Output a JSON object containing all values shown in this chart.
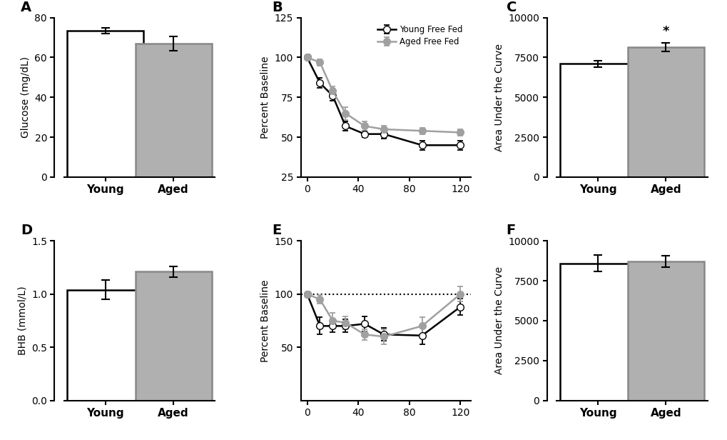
{
  "panel_A": {
    "categories": [
      "Young",
      "Aged"
    ],
    "values": [
      73.5,
      67.0
    ],
    "errors": [
      1.5,
      3.5
    ],
    "bar_colors": [
      "white",
      "#b0b0b0"
    ],
    "bar_edgecolors": [
      "black",
      "#888888"
    ],
    "ylabel": "Glucose (mg/dL)",
    "ylim": [
      0,
      80
    ],
    "yticks": [
      0,
      20,
      40,
      60,
      80
    ],
    "label": "A"
  },
  "panel_B": {
    "time": [
      0,
      10,
      20,
      30,
      45,
      60,
      90,
      120
    ],
    "young_values": [
      100,
      84,
      76,
      57,
      52,
      52,
      45,
      45
    ],
    "aged_values": [
      100,
      97,
      79,
      65,
      57,
      55,
      54,
      53
    ],
    "young_errors": [
      0,
      3,
      3,
      3,
      2,
      3,
      3,
      3
    ],
    "aged_errors": [
      0,
      2,
      3,
      4,
      3,
      2,
      2,
      2
    ],
    "young_color": "black",
    "aged_color": "#a0a0a0",
    "young_markerfacecolor": "white",
    "aged_markerfacecolor": "#a0a0a0",
    "ylabel": "Percent Baseline",
    "ylim": [
      25,
      125
    ],
    "yticks": [
      25,
      50,
      75,
      100,
      125
    ],
    "xticks": [
      0,
      40,
      80,
      120
    ],
    "xlim": [
      -5,
      128
    ],
    "legend_labels": [
      "Young Free Fed",
      "Aged Free Fed"
    ],
    "label": "B"
  },
  "panel_C": {
    "categories": [
      "Young",
      "Aged"
    ],
    "values": [
      7100,
      8150
    ],
    "errors": [
      200,
      250
    ],
    "bar_colors": [
      "white",
      "#b0b0b0"
    ],
    "bar_edgecolors": [
      "black",
      "#888888"
    ],
    "ylabel": "Area Under the Curve",
    "ylim": [
      0,
      10000
    ],
    "yticks": [
      0,
      2500,
      5000,
      7500,
      10000
    ],
    "significance": "*",
    "sig_bar_idx": 1,
    "label": "C"
  },
  "panel_D": {
    "categories": [
      "Young",
      "Aged"
    ],
    "values": [
      1.04,
      1.21
    ],
    "errors": [
      0.09,
      0.05
    ],
    "bar_colors": [
      "white",
      "#b0b0b0"
    ],
    "bar_edgecolors": [
      "black",
      "#888888"
    ],
    "ylabel": "BHB (mmol/L)",
    "ylim": [
      0.0,
      1.5
    ],
    "yticks": [
      0.0,
      0.5,
      1.0,
      1.5
    ],
    "label": "D"
  },
  "panel_E": {
    "time": [
      0,
      10,
      20,
      30,
      45,
      60,
      90,
      120
    ],
    "young_values": [
      100,
      70,
      70,
      70,
      72,
      62,
      61,
      88
    ],
    "aged_values": [
      100,
      95,
      75,
      73,
      62,
      60,
      70,
      100
    ],
    "young_errors": [
      0,
      8,
      6,
      6,
      7,
      6,
      8,
      8
    ],
    "aged_errors": [
      0,
      4,
      7,
      6,
      5,
      7,
      8,
      7
    ],
    "young_color": "black",
    "aged_color": "#a0a0a0",
    "young_markerfacecolor": "white",
    "aged_markerfacecolor": "#a0a0a0",
    "ylabel": "Percent Baseline",
    "ylim": [
      0,
      150
    ],
    "yticks": [
      50,
      100,
      150
    ],
    "xticks": [
      0,
      40,
      80,
      120
    ],
    "xlim": [
      -5,
      128
    ],
    "dotted_line_y": 100,
    "label": "E"
  },
  "panel_F": {
    "categories": [
      "Young",
      "Aged"
    ],
    "values": [
      8600,
      8700
    ],
    "errors": [
      500,
      350
    ],
    "bar_colors": [
      "white",
      "#b0b0b0"
    ],
    "bar_edgecolors": [
      "black",
      "#888888"
    ],
    "ylabel": "Area Under the Curve",
    "ylim": [
      0,
      10000
    ],
    "yticks": [
      0,
      2500,
      5000,
      7500,
      10000
    ],
    "label": "F"
  },
  "global": {
    "background_color": "white",
    "label_font_size": 14,
    "axis_label_fontsize": 10,
    "tick_fontsize": 10,
    "bar_width": 0.45,
    "bar_positions": [
      0.3,
      0.7
    ],
    "line_width": 1.8,
    "marker_size": 7,
    "capsize": 4,
    "elinewidth": 1.5
  }
}
